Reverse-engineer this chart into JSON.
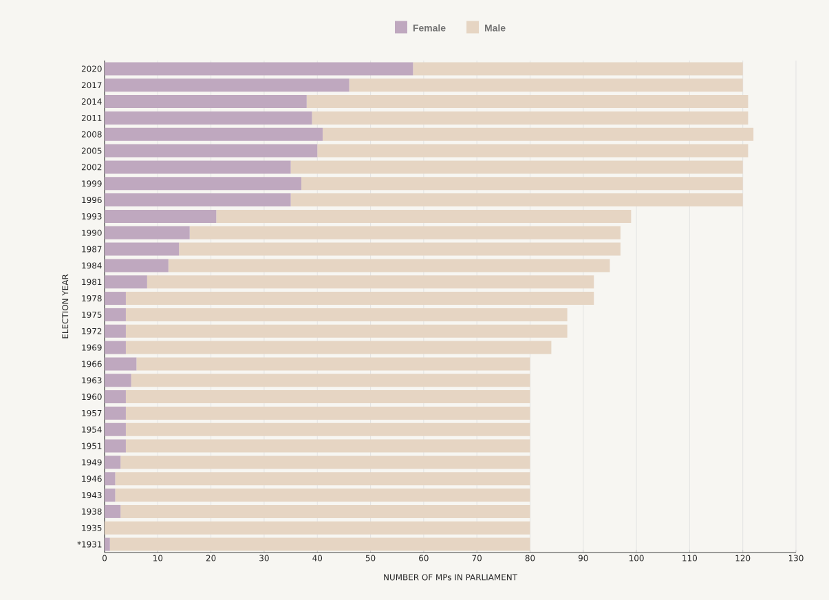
{
  "chart_data": {
    "type": "bar",
    "orientation": "horizontal",
    "stacked": true,
    "xlabel": "NUMBER OF MPs IN PARLIAMENT",
    "ylabel": "ELECTION YEAR",
    "categories": [
      "2020",
      "2017",
      "2014",
      "2011",
      "2008",
      "2005",
      "2002",
      "1999",
      "1996",
      "1993",
      "1990",
      "1987",
      "1984",
      "1981",
      "1978",
      "1975",
      "1972",
      "1969",
      "1966",
      "1963",
      "1960",
      "1957",
      "1954",
      "1951",
      "1949",
      "1946",
      "1943",
      "1938",
      "1935",
      "*1931"
    ],
    "series": [
      {
        "name": "Female",
        "color": "#bfa8bf",
        "values": [
          58,
          46,
          38,
          39,
          41,
          40,
          35,
          37,
          35,
          21,
          16,
          14,
          12,
          8,
          4,
          4,
          4,
          4,
          6,
          5,
          4,
          4,
          4,
          4,
          3,
          2,
          2,
          3,
          0,
          1
        ]
      },
      {
        "name": "Male",
        "color": "#e6d5c3",
        "values": [
          62,
          74,
          83,
          82,
          81,
          81,
          85,
          83,
          85,
          78,
          81,
          83,
          83,
          84,
          88,
          83,
          83,
          80,
          74,
          75,
          76,
          76,
          76,
          76,
          77,
          78,
          78,
          77,
          80,
          79
        ]
      }
    ],
    "xlim": [
      0,
      130
    ],
    "xticks": [
      0,
      10,
      20,
      30,
      40,
      50,
      60,
      70,
      80,
      90,
      100,
      110,
      120,
      130
    ],
    "grid": "x",
    "legend": "top"
  }
}
